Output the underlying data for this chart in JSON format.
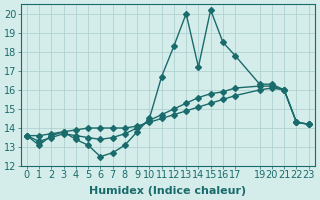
{
  "xlabel": "Humidex (Indice chaleur)",
  "ylabel": "",
  "bg_color": "#d4ecea",
  "line_color": "#1a6b6b",
  "xlim": [
    -0.5,
    23.5
  ],
  "ylim": [
    12,
    20.5
  ],
  "yticks": [
    12,
    13,
    14,
    15,
    16,
    17,
    18,
    19,
    20
  ],
  "xticks": [
    0,
    1,
    2,
    3,
    4,
    5,
    6,
    7,
    8,
    9,
    10,
    11,
    12,
    13,
    14,
    15,
    16,
    17,
    19,
    20,
    21,
    22,
    23
  ],
  "xtick_labels": [
    "0",
    "1",
    "2",
    "3",
    "4",
    "5",
    "6",
    "7",
    "8",
    "9",
    "10",
    "11",
    "12",
    "13",
    "14",
    "15",
    "16",
    "17",
    "19",
    "20",
    "21",
    "22",
    "23"
  ],
  "series1": [
    13.6,
    13.1,
    13.6,
    13.8,
    13.4,
    13.1,
    12.5,
    12.7,
    13.1,
    13.8,
    14.5,
    16.7,
    18.3,
    20.0,
    17.2,
    20.2,
    18.5,
    17.8,
    16.3,
    16.3,
    16.0,
    14.3,
    14.2
  ],
  "series1_x": [
    0,
    1,
    2,
    3,
    4,
    5,
    6,
    7,
    8,
    9,
    10,
    11,
    12,
    13,
    14,
    15,
    16,
    17,
    19,
    20,
    21,
    22,
    23
  ],
  "series2": [
    13.6,
    13.3,
    13.5,
    13.7,
    13.6,
    13.5,
    13.4,
    13.5,
    13.7,
    14.0,
    14.4,
    14.7,
    15.0,
    15.3,
    15.6,
    15.8,
    15.9,
    16.1,
    16.2,
    16.2,
    16.0,
    14.3,
    14.2
  ],
  "series2_x": [
    0,
    1,
    2,
    3,
    4,
    5,
    6,
    7,
    8,
    9,
    10,
    11,
    12,
    13,
    14,
    15,
    16,
    17,
    19,
    20,
    21,
    22,
    23
  ],
  "series3": [
    13.6,
    13.6,
    13.7,
    13.8,
    13.9,
    14.0,
    14.0,
    14.0,
    14.0,
    14.1,
    14.3,
    14.5,
    14.7,
    14.9,
    15.1,
    15.3,
    15.5,
    15.7,
    16.0,
    16.1,
    16.0,
    14.3,
    14.2
  ],
  "series3_x": [
    0,
    1,
    2,
    3,
    4,
    5,
    6,
    7,
    8,
    9,
    10,
    11,
    12,
    13,
    14,
    15,
    16,
    17,
    19,
    20,
    21,
    22,
    23
  ],
  "marker": "D",
  "markersize": 3,
  "linewidth": 1.0,
  "grid_color": "#aacccc",
  "xlabel_fontsize": 8,
  "tick_fontsize": 7
}
